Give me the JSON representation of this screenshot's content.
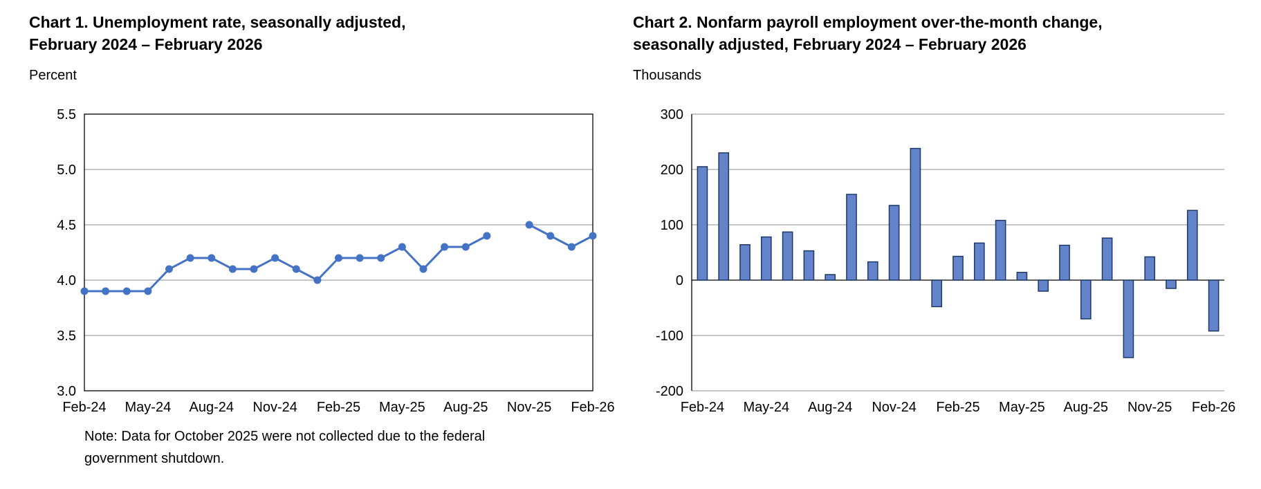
{
  "charts": {
    "chart1": {
      "title_lines": [
        "Chart 1. Unemployment rate, seasonally adjusted,",
        "February 2024 – February 2026"
      ],
      "unit": "Percent",
      "note_lines": [
        "Note: Data for October 2025 were not collected due to the federal",
        "government shutdown."
      ]
    },
    "chart2": {
      "title_lines": [
        "Chart 2. Nonfarm payroll employment over-the-month change,",
        "seasonally adjusted, February 2024 – February 2026"
      ],
      "unit": "Thousands"
    }
  },
  "chart_data": [
    {
      "type": "line",
      "title": "Chart 1. Unemployment rate, seasonally adjusted, February 2024 – February 2026",
      "ylabel": "Percent",
      "xlabel": "",
      "ylim": [
        3.0,
        5.5
      ],
      "ytick_step": 0.5,
      "grid": true,
      "legend": false,
      "note": "Note: Data for October 2025 were not collected due to the federal government shutdown.",
      "x": [
        "Feb-24",
        "Mar-24",
        "Apr-24",
        "May-24",
        "Jun-24",
        "Jul-24",
        "Aug-24",
        "Sep-24",
        "Oct-24",
        "Nov-24",
        "Dec-24",
        "Jan-25",
        "Feb-25",
        "Mar-25",
        "Apr-25",
        "May-25",
        "Jun-25",
        "Jul-25",
        "Aug-25",
        "Sep-25",
        "Oct-25",
        "Nov-25",
        "Dec-25",
        "Jan-26",
        "Feb-26"
      ],
      "values": [
        3.9,
        3.9,
        3.9,
        3.9,
        4.1,
        4.2,
        4.2,
        4.1,
        4.1,
        4.2,
        4.1,
        4.0,
        4.2,
        4.2,
        4.2,
        4.3,
        4.1,
        4.3,
        4.3,
        4.4,
        null,
        4.5,
        4.4,
        4.3,
        4.4
      ],
      "x_ticks": [
        "Feb-24",
        "May-24",
        "Aug-24",
        "Nov-24",
        "Feb-25",
        "May-25",
        "Aug-25",
        "Nov-25",
        "Feb-26"
      ],
      "line_color": "#4472C4",
      "grid_color": "#8C8C8C"
    },
    {
      "type": "bar",
      "title": "Chart 2. Nonfarm payroll employment over-the-month change, seasonally adjusted, February 2024 – February 2026",
      "ylabel": "Thousands",
      "xlabel": "",
      "ylim": [
        -200,
        300
      ],
      "ytick_step": 100,
      "grid": true,
      "legend": false,
      "x": [
        "Feb-24",
        "Mar-24",
        "Apr-24",
        "May-24",
        "Jun-24",
        "Jul-24",
        "Aug-24",
        "Sep-24",
        "Oct-24",
        "Nov-24",
        "Dec-24",
        "Jan-25",
        "Feb-25",
        "Mar-25",
        "Apr-25",
        "May-25",
        "Jun-25",
        "Jul-25",
        "Aug-25",
        "Sep-25",
        "Oct-25",
        "Nov-25",
        "Dec-25",
        "Jan-26",
        "Feb-26"
      ],
      "values": [
        205,
        230,
        64,
        78,
        87,
        53,
        10,
        155,
        33,
        135,
        238,
        -48,
        43,
        67,
        108,
        14,
        -20,
        63,
        -70,
        76,
        -140,
        42,
        -15,
        126,
        -92
      ],
      "x_ticks": [
        "Feb-24",
        "May-24",
        "Aug-24",
        "Nov-24",
        "Feb-25",
        "May-25",
        "Aug-25",
        "Nov-25",
        "Feb-26"
      ],
      "bar_fill": "#6383CB",
      "bar_stroke": "#1F3864",
      "grid_color": "#8C8C8C"
    }
  ]
}
